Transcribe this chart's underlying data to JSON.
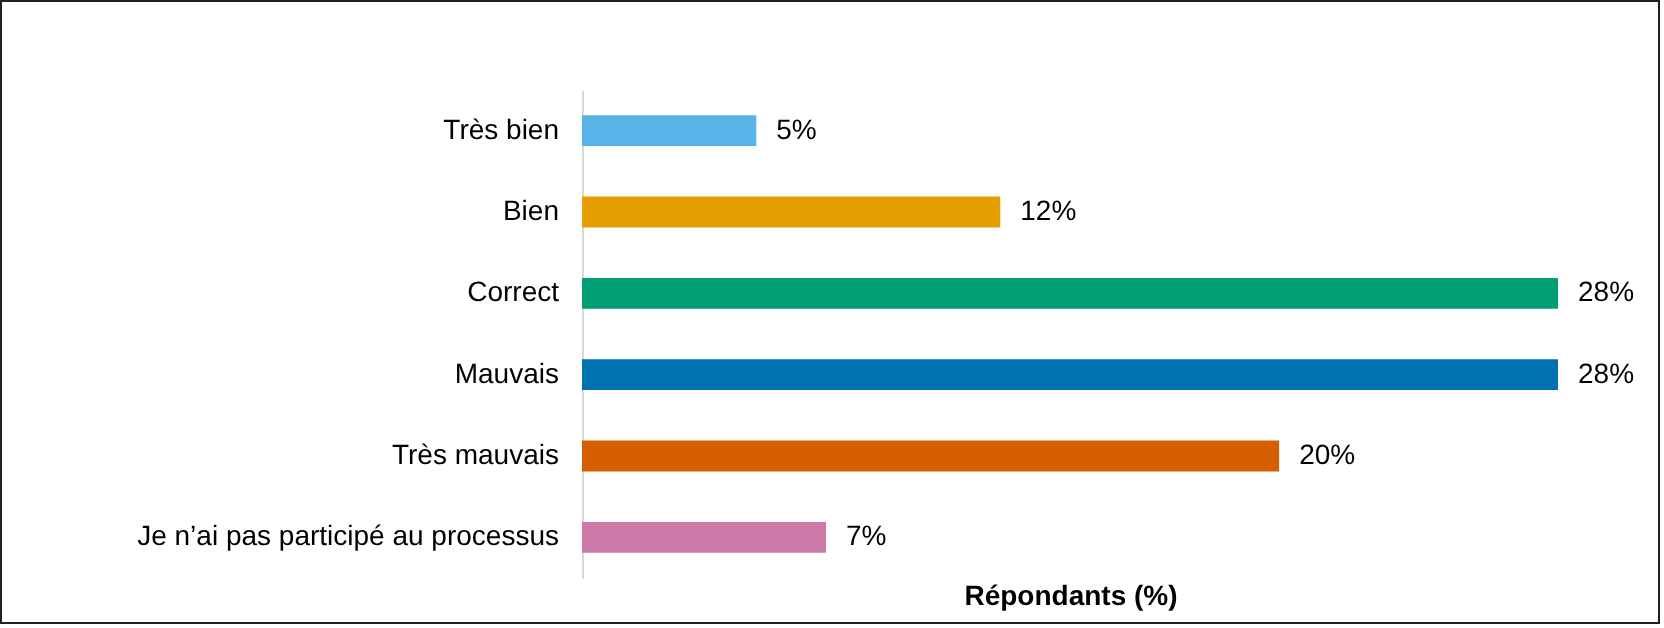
{
  "chart_data": {
    "type": "bar",
    "orientation": "horizontal",
    "xlabel": "Répondants (%)",
    "categories": [
      "Très bien",
      "Bien",
      "Correct",
      "Mauvais",
      "Très mauvais",
      "Je n’ai pas participé au processus"
    ],
    "values": [
      5,
      12,
      28,
      28,
      20,
      7
    ],
    "colors": [
      "#56b4e9",
      "#e69f00",
      "#009e73",
      "#0072b2",
      "#d55e00",
      "#cc79a7"
    ],
    "value_labels": [
      "5%",
      "12%",
      "28%",
      "28%",
      "20%",
      "7%"
    ],
    "tick_labels": "y"
  }
}
